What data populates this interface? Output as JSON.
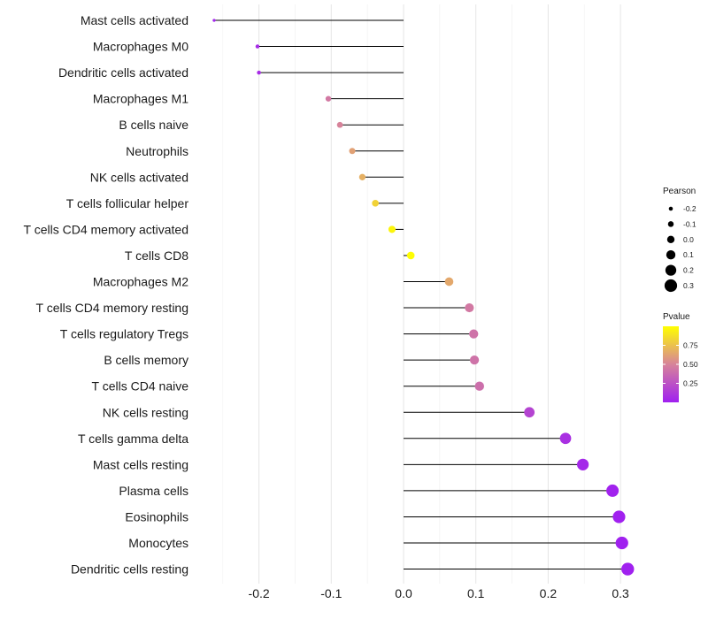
{
  "chart_data": {
    "type": "lollipop",
    "title": "",
    "xlabel": "",
    "ylabel": "",
    "xlim": [
      -0.26,
      0.34
    ],
    "x_ticks": [
      -0.2,
      -0.1,
      0.0,
      0.1,
      0.2,
      0.3
    ],
    "x_tick_labels": [
      "-0.2",
      "-0.1",
      "0.0",
      "0.1",
      "0.2",
      "0.3"
    ],
    "categories": [
      "Mast cells activated",
      "Macrophages M0",
      "Dendritic cells activated",
      "Macrophages M1",
      "B cells naive",
      "Neutrophils",
      "NK cells activated",
      "T cells follicular helper",
      "T cells CD4 memory activated",
      "T cells CD8",
      "Macrophages M2",
      "T cells CD4 memory resting",
      "T cells regulatory  Tregs ",
      "B cells memory",
      "T cells CD4 naive",
      "NK cells resting",
      "T cells gamma delta",
      "Mast cells resting",
      "Plasma cells",
      "Eosinophils",
      "Monocytes",
      "Dendritic cells resting"
    ],
    "pearson": [
      -0.262,
      -0.202,
      -0.2,
      -0.104,
      -0.088,
      -0.071,
      -0.057,
      -0.039,
      -0.016,
      0.01,
      0.063,
      0.091,
      0.097,
      0.098,
      0.105,
      0.174,
      0.224,
      0.248,
      0.289,
      0.298,
      0.302,
      0.31
    ],
    "pvalue": [
      0.02,
      0.05,
      0.06,
      0.45,
      0.5,
      0.62,
      0.68,
      0.82,
      0.96,
      0.99,
      0.65,
      0.45,
      0.42,
      0.42,
      0.4,
      0.18,
      0.08,
      0.04,
      0.01,
      0.005,
      0.004,
      0.003
    ],
    "size_legend": {
      "title": "Pearson",
      "values": [
        -0.2,
        -0.1,
        0.0,
        0.1,
        0.2,
        0.3
      ],
      "labels": [
        "-0.2",
        "-0.1",
        "0.0",
        "0.1",
        "0.2",
        "0.3"
      ]
    },
    "color_legend": {
      "title": "Pvalue",
      "range": [
        0.0,
        1.0
      ],
      "ticks": [
        0.25,
        0.5,
        0.75
      ],
      "tick_labels": [
        "0.25",
        "0.50",
        "0.75"
      ],
      "low_color": "#a020f0",
      "mid_color": "#d7839a",
      "high_color": "#ffff00"
    },
    "grid": true,
    "legend_position": "right"
  }
}
